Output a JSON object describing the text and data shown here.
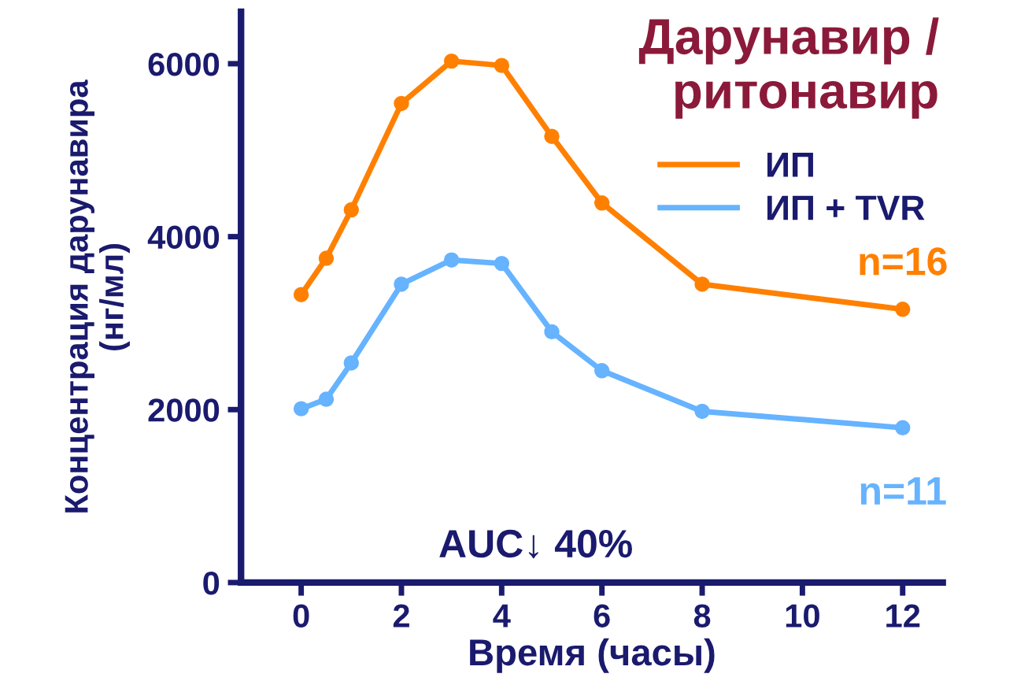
{
  "chart_data": {
    "type": "line",
    "title": "Дарунавир /\nритонавир",
    "xlabel": "Время (часы)",
    "ylabel": "Концентрация дарунавира\n(нг/мл)",
    "xlim": [
      -1.2,
      12.8
    ],
    "ylim": [
      0,
      6600
    ],
    "xticks": [
      0,
      2,
      4,
      6,
      8,
      10,
      12
    ],
    "yticks": [
      0,
      2000,
      4000,
      6000
    ],
    "marker": "circle",
    "line_style": "solid",
    "grid": false,
    "legend": "top right",
    "series": [
      {
        "name": "ИП",
        "color": "#ff8000",
        "x": [
          0,
          0.5,
          1,
          2,
          3,
          4,
          5,
          6,
          8,
          12
        ],
        "values": [
          3330,
          3750,
          4310,
          5540,
          6030,
          5980,
          5160,
          4390,
          3450,
          3160
        ]
      },
      {
        "name": "ИП + TVR",
        "color": "#66b3ff",
        "x": [
          0,
          0.5,
          1,
          2,
          3,
          4,
          5,
          6,
          8,
          12
        ],
        "values": [
          2010,
          2120,
          2540,
          3450,
          3730,
          3690,
          2900,
          2450,
          1980,
          1790
        ]
      }
    ],
    "annotations": [
      {
        "text": "n=16",
        "x": 12,
        "y": 3160
      },
      {
        "text": "n=11",
        "x": 12,
        "y": 1790
      },
      "AUC↓ 40%"
    ]
  }
}
